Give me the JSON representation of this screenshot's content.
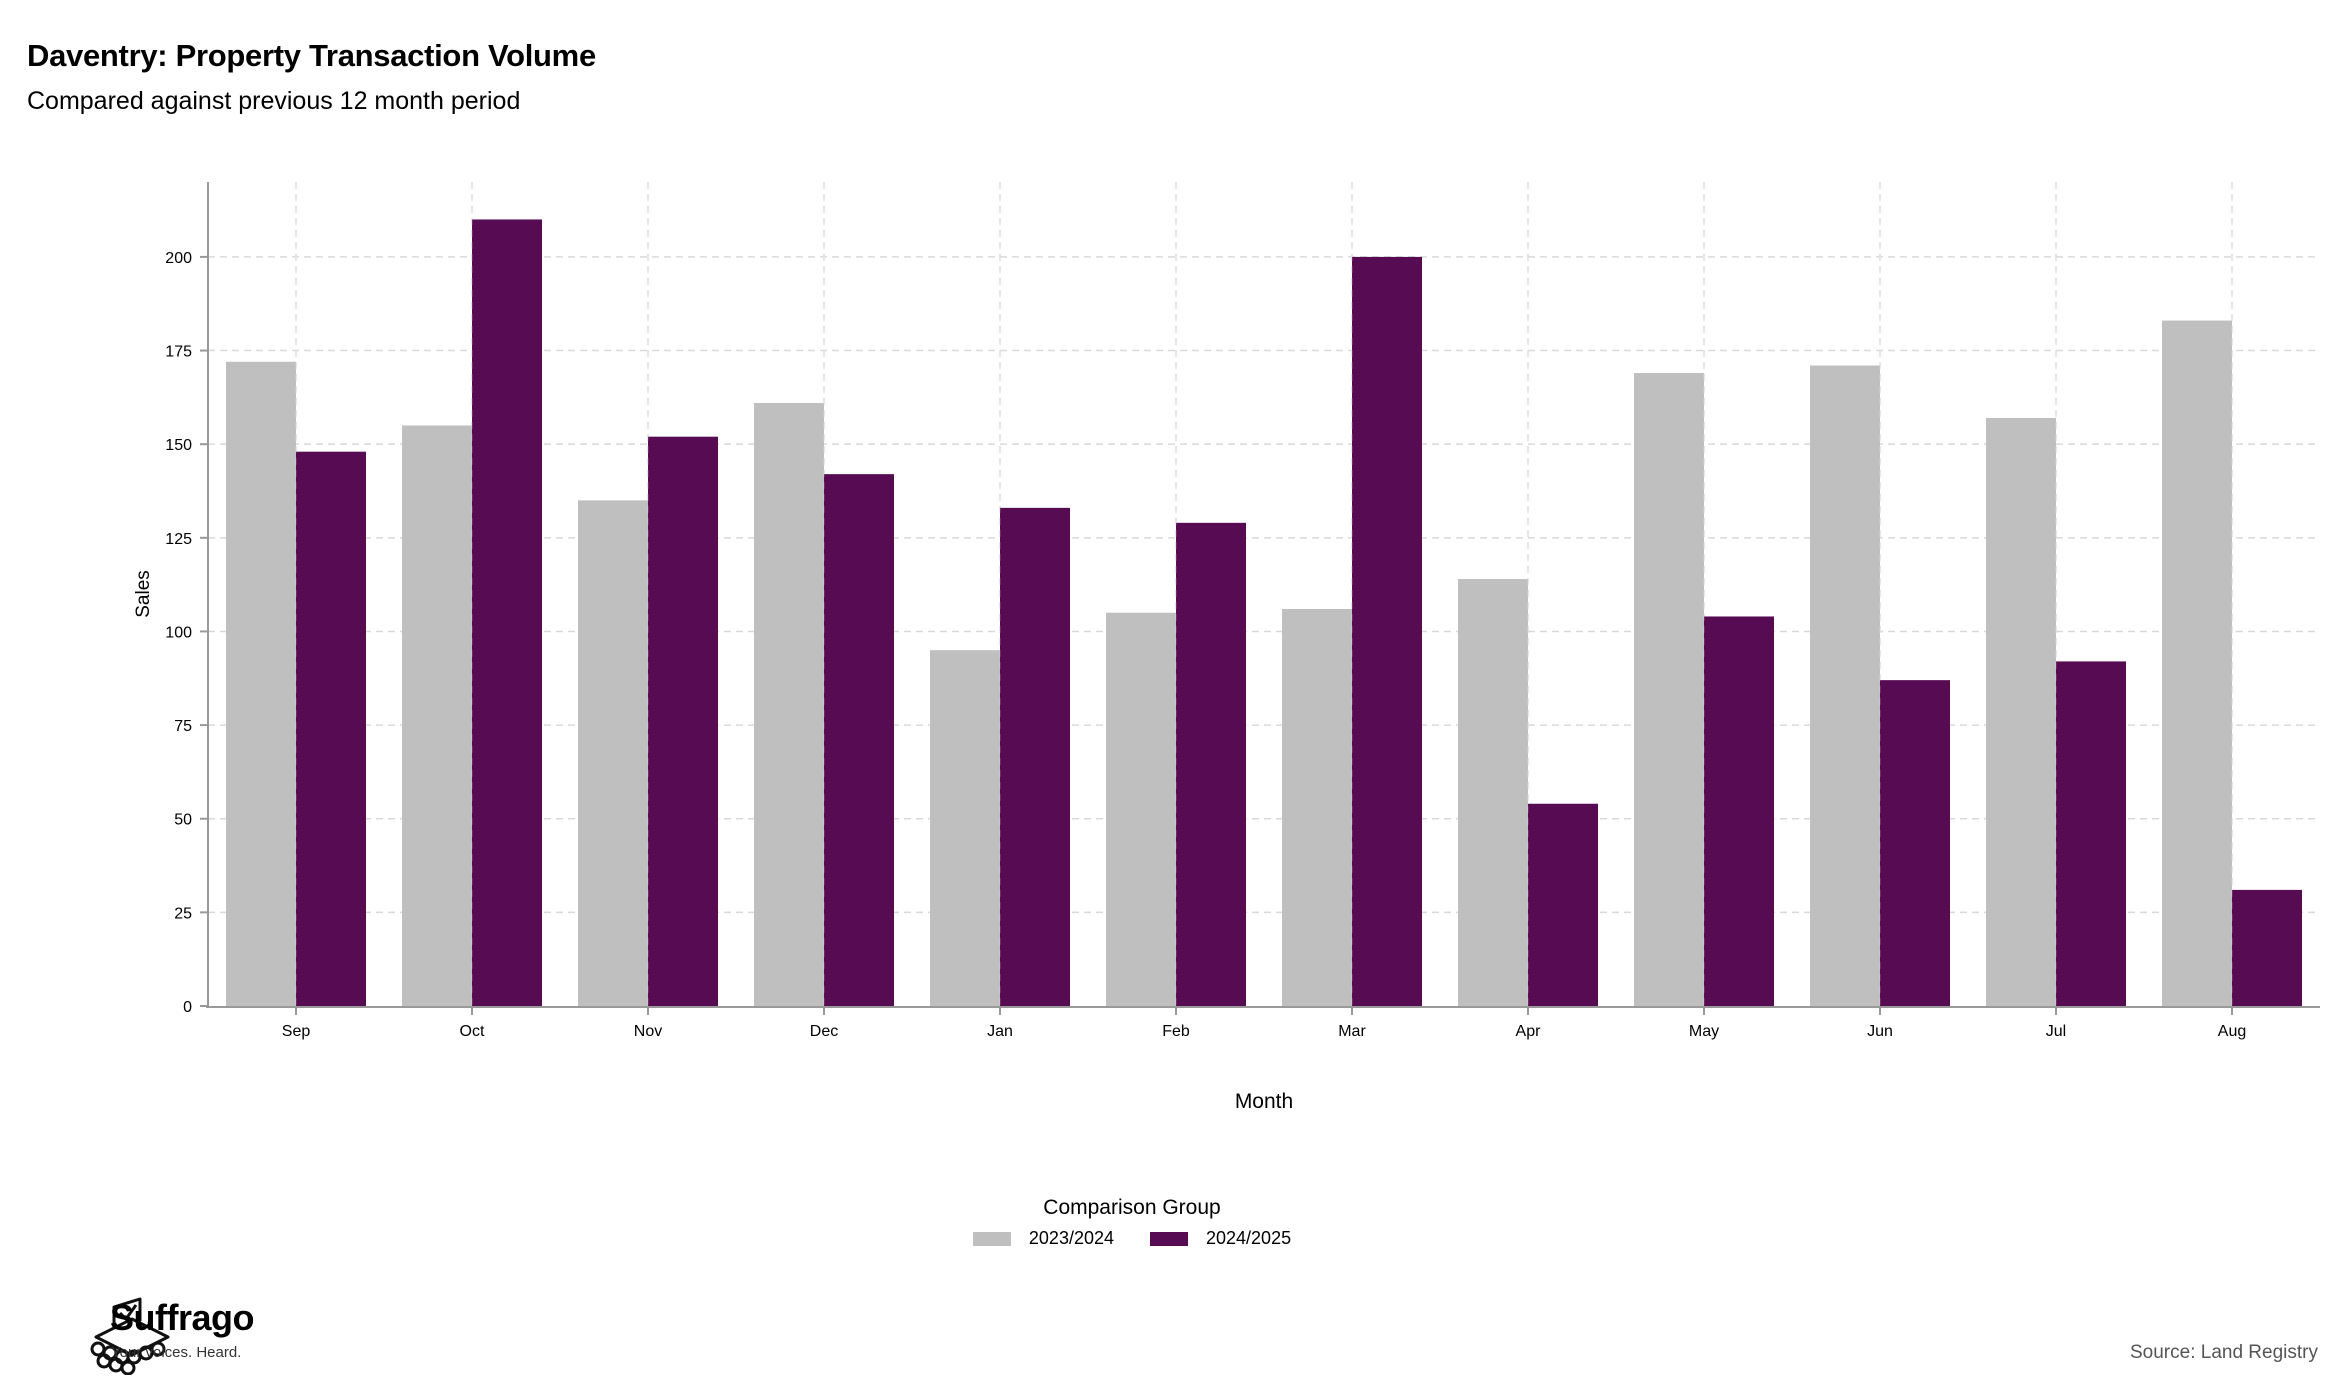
{
  "title": "Daventry: Property Transaction Volume",
  "subtitle": "Compared against previous 12 month period",
  "source": "Source: Land Registry",
  "logo": {
    "name": "Suffrago",
    "tagline": "Your voices. Heard."
  },
  "legend": {
    "title": "Comparison Group"
  },
  "colors": {
    "prev": "#bfbfbf",
    "curr": "#570b52",
    "grid": "#d9d9d9",
    "axis": "#999999"
  },
  "chart_data": {
    "type": "bar",
    "xlabel": "Month",
    "ylabel": "Sales",
    "ylim": [
      0,
      220
    ],
    "yticks": [
      0,
      25,
      50,
      75,
      100,
      125,
      150,
      175,
      200
    ],
    "grid": true,
    "legend_position": "bottom",
    "categories": [
      "Sep",
      "Oct",
      "Nov",
      "Dec",
      "Jan",
      "Feb",
      "Mar",
      "Apr",
      "May",
      "Jun",
      "Jul",
      "Aug"
    ],
    "series": [
      {
        "name": "2023/2024",
        "values": [
          172,
          155,
          135,
          161,
          95,
          105,
          106,
          114,
          169,
          171,
          157,
          183
        ]
      },
      {
        "name": "2024/2025",
        "values": [
          148,
          210,
          152,
          142,
          133,
          129,
          200,
          54,
          104,
          87,
          92,
          31
        ]
      }
    ]
  }
}
